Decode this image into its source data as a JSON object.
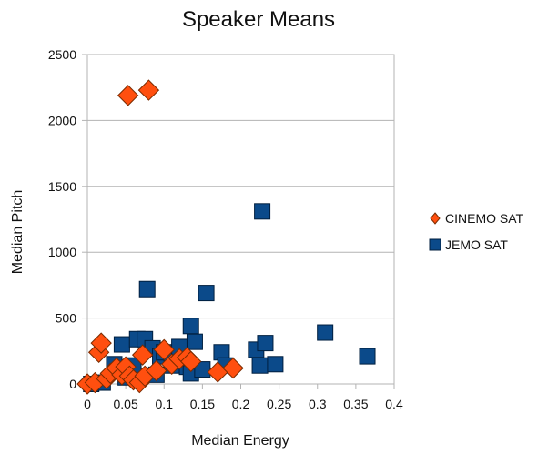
{
  "chart_data": {
    "type": "scatter",
    "title": "Speaker Means",
    "xlabel": "Median Energy",
    "ylabel": "Median Pitch",
    "xlim": [
      0,
      0.4
    ],
    "ylim": [
      0,
      2500
    ],
    "xticks": [
      0,
      0.05,
      0.1,
      0.15,
      0.2,
      0.25,
      0.3,
      0.35,
      0.4
    ],
    "xtick_labels": [
      "0",
      "0.05",
      "0.1",
      "0.15",
      "0.2",
      "0.25",
      "0.3",
      "0.35",
      "0.4"
    ],
    "yticks": [
      0,
      500,
      1000,
      1500,
      2000,
      2500
    ],
    "ytick_labels": [
      "0",
      "500",
      "1000",
      "1500",
      "2000",
      "2500"
    ],
    "grid": "horizontal",
    "legend_position": "right",
    "series": [
      {
        "name": "JEMO SAT",
        "marker": "square",
        "color": "#0b4a8a",
        "points": [
          [
            0.005,
            0
          ],
          [
            0.02,
            10
          ],
          [
            0.035,
            150
          ],
          [
            0.045,
            300
          ],
          [
            0.05,
            50
          ],
          [
            0.06,
            140
          ],
          [
            0.065,
            340
          ],
          [
            0.075,
            340
          ],
          [
            0.085,
            270
          ],
          [
            0.09,
            70
          ],
          [
            0.095,
            210
          ],
          [
            0.1,
            240
          ],
          [
            0.11,
            140
          ],
          [
            0.12,
            280
          ],
          [
            0.13,
            130
          ],
          [
            0.135,
            80
          ],
          [
            0.135,
            440
          ],
          [
            0.14,
            320
          ],
          [
            0.15,
            110
          ],
          [
            0.155,
            690
          ],
          [
            0.175,
            240
          ],
          [
            0.18,
            140
          ],
          [
            0.22,
            260
          ],
          [
            0.225,
            140
          ],
          [
            0.228,
            1310
          ],
          [
            0.232,
            310
          ],
          [
            0.245,
            150
          ],
          [
            0.31,
            390
          ],
          [
            0.365,
            210
          ],
          [
            0.078,
            720
          ]
        ]
      },
      {
        "name": "CINEMO SAT",
        "marker": "diamond",
        "color": "#ff4f0f",
        "points": [
          [
            0.0,
            0
          ],
          [
            0.01,
            10
          ],
          [
            0.015,
            240
          ],
          [
            0.018,
            310
          ],
          [
            0.025,
            40
          ],
          [
            0.03,
            80
          ],
          [
            0.038,
            120
          ],
          [
            0.045,
            70
          ],
          [
            0.05,
            130
          ],
          [
            0.055,
            60
          ],
          [
            0.06,
            30
          ],
          [
            0.068,
            10
          ],
          [
            0.072,
            220
          ],
          [
            0.075,
            60
          ],
          [
            0.09,
            100
          ],
          [
            0.1,
            260
          ],
          [
            0.11,
            150
          ],
          [
            0.12,
            190
          ],
          [
            0.13,
            200
          ],
          [
            0.135,
            170
          ],
          [
            0.17,
            90
          ],
          [
            0.19,
            120
          ],
          [
            0.053,
            2190
          ],
          [
            0.08,
            2230
          ]
        ]
      }
    ]
  }
}
